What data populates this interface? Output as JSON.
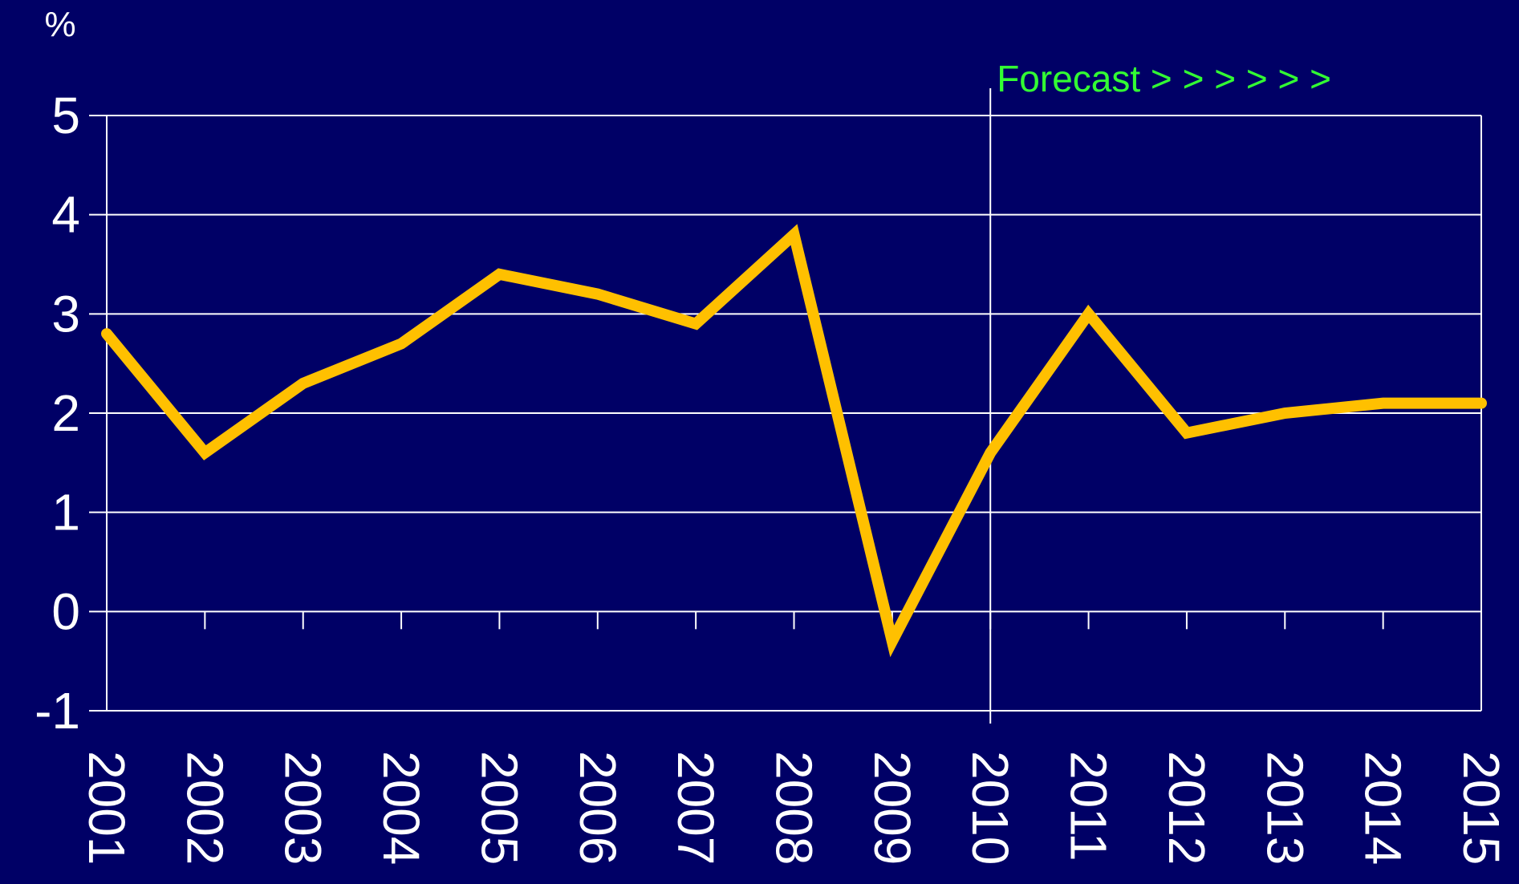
{
  "chart_data": {
    "type": "line",
    "ylabel": "%",
    "ylim": [
      -1,
      5
    ],
    "yticks": [
      5,
      4,
      3,
      2,
      1,
      0,
      -1
    ],
    "categories": [
      "2001",
      "2002",
      "2003",
      "2004",
      "2005",
      "2006",
      "2007",
      "2008",
      "2009",
      "2010",
      "2011",
      "2012",
      "2013",
      "2014",
      "2015"
    ],
    "series": [
      {
        "values": [
          2.8,
          1.6,
          2.3,
          2.7,
          3.4,
          3.2,
          2.9,
          3.8,
          -0.3,
          1.6,
          3.0,
          1.8,
          2.0,
          2.1,
          2.1
        ],
        "color": "#FFC000"
      }
    ],
    "annotation": {
      "text": "Forecast > > > > > >",
      "at_category": "2010",
      "color": "#33FF33"
    },
    "grid": true,
    "background_color": "#000066",
    "axis_color": "#FFFFFF",
    "text_color": "#FFFFFF"
  }
}
